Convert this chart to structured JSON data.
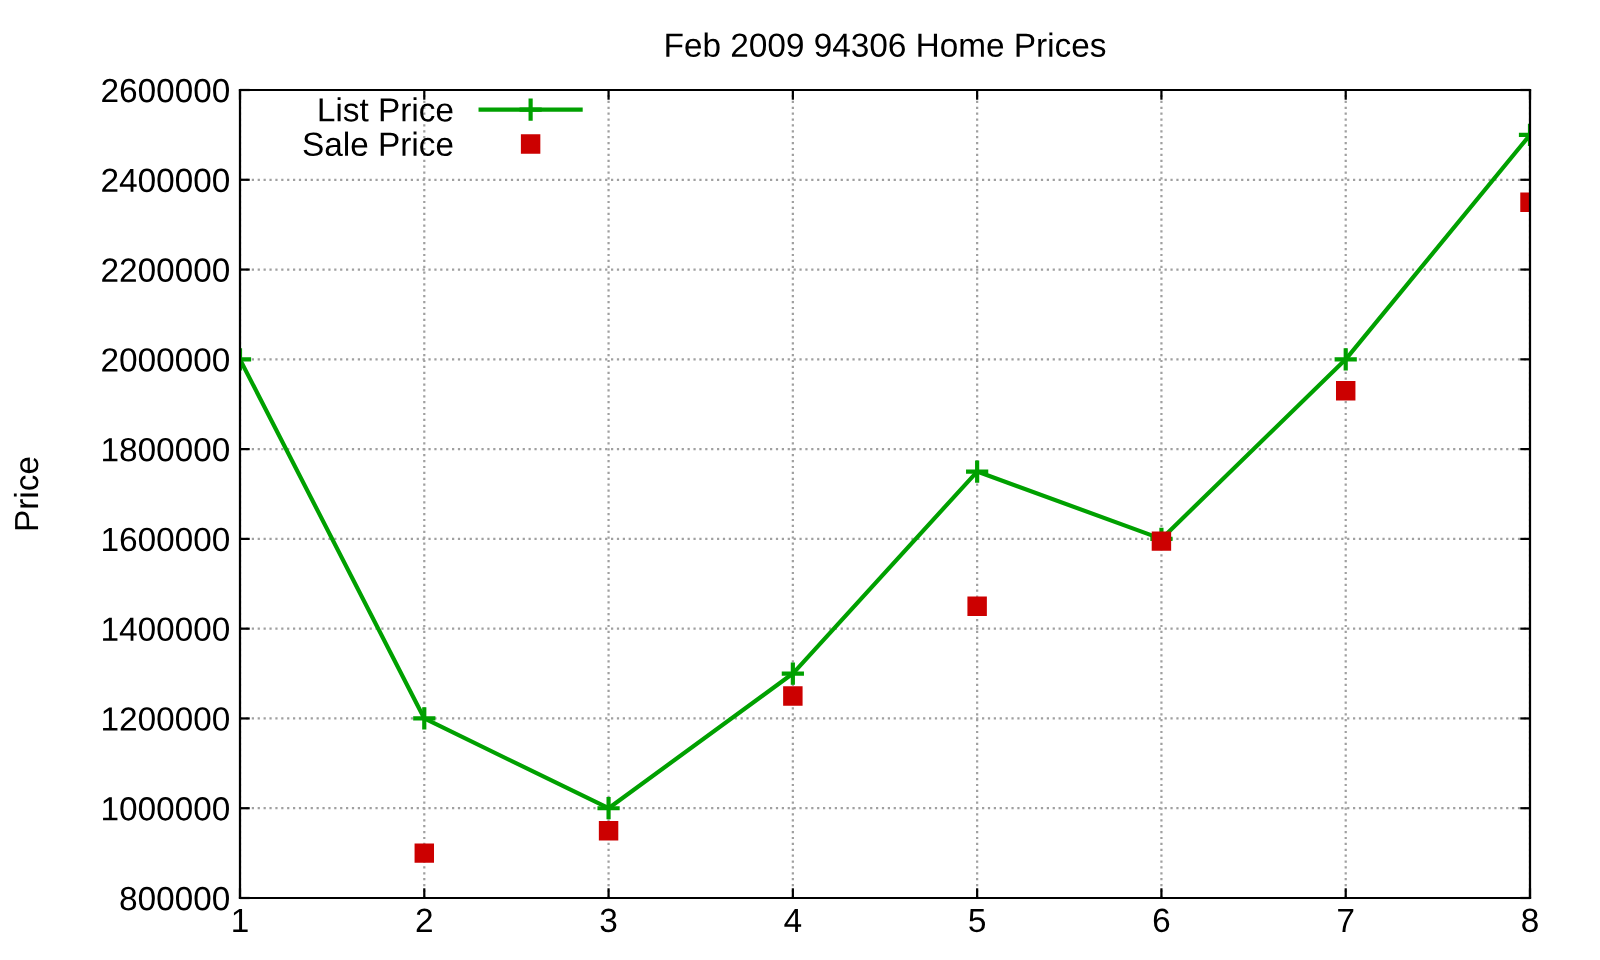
{
  "chart_data": {
    "type": "line",
    "title": "Feb 2009 94306 Home Prices",
    "ylabel": "Price",
    "x": [
      1,
      2,
      3,
      4,
      5,
      6,
      7,
      8
    ],
    "series": [
      {
        "name": "List Price",
        "color": "#00a000",
        "marker": "cross",
        "values": [
          2000000,
          1200000,
          1000000,
          1300000,
          1750000,
          1600000,
          2000000,
          2500000
        ]
      },
      {
        "name": "Sale Price",
        "type": "scatter",
        "color": "#cc0000",
        "marker": "square",
        "values": [
          null,
          900000,
          950000,
          1250000,
          1450000,
          1595000,
          1930000,
          2350000
        ]
      }
    ],
    "xlim": [
      1,
      8
    ],
    "xticks": [
      1,
      2,
      3,
      4,
      5,
      6,
      7,
      8
    ],
    "ylim": [
      800000,
      2600000
    ],
    "yticks": [
      800000,
      1000000,
      1200000,
      1400000,
      1600000,
      1800000,
      2000000,
      2200000,
      2400000,
      2600000
    ],
    "grid": true,
    "legend": "top left"
  }
}
